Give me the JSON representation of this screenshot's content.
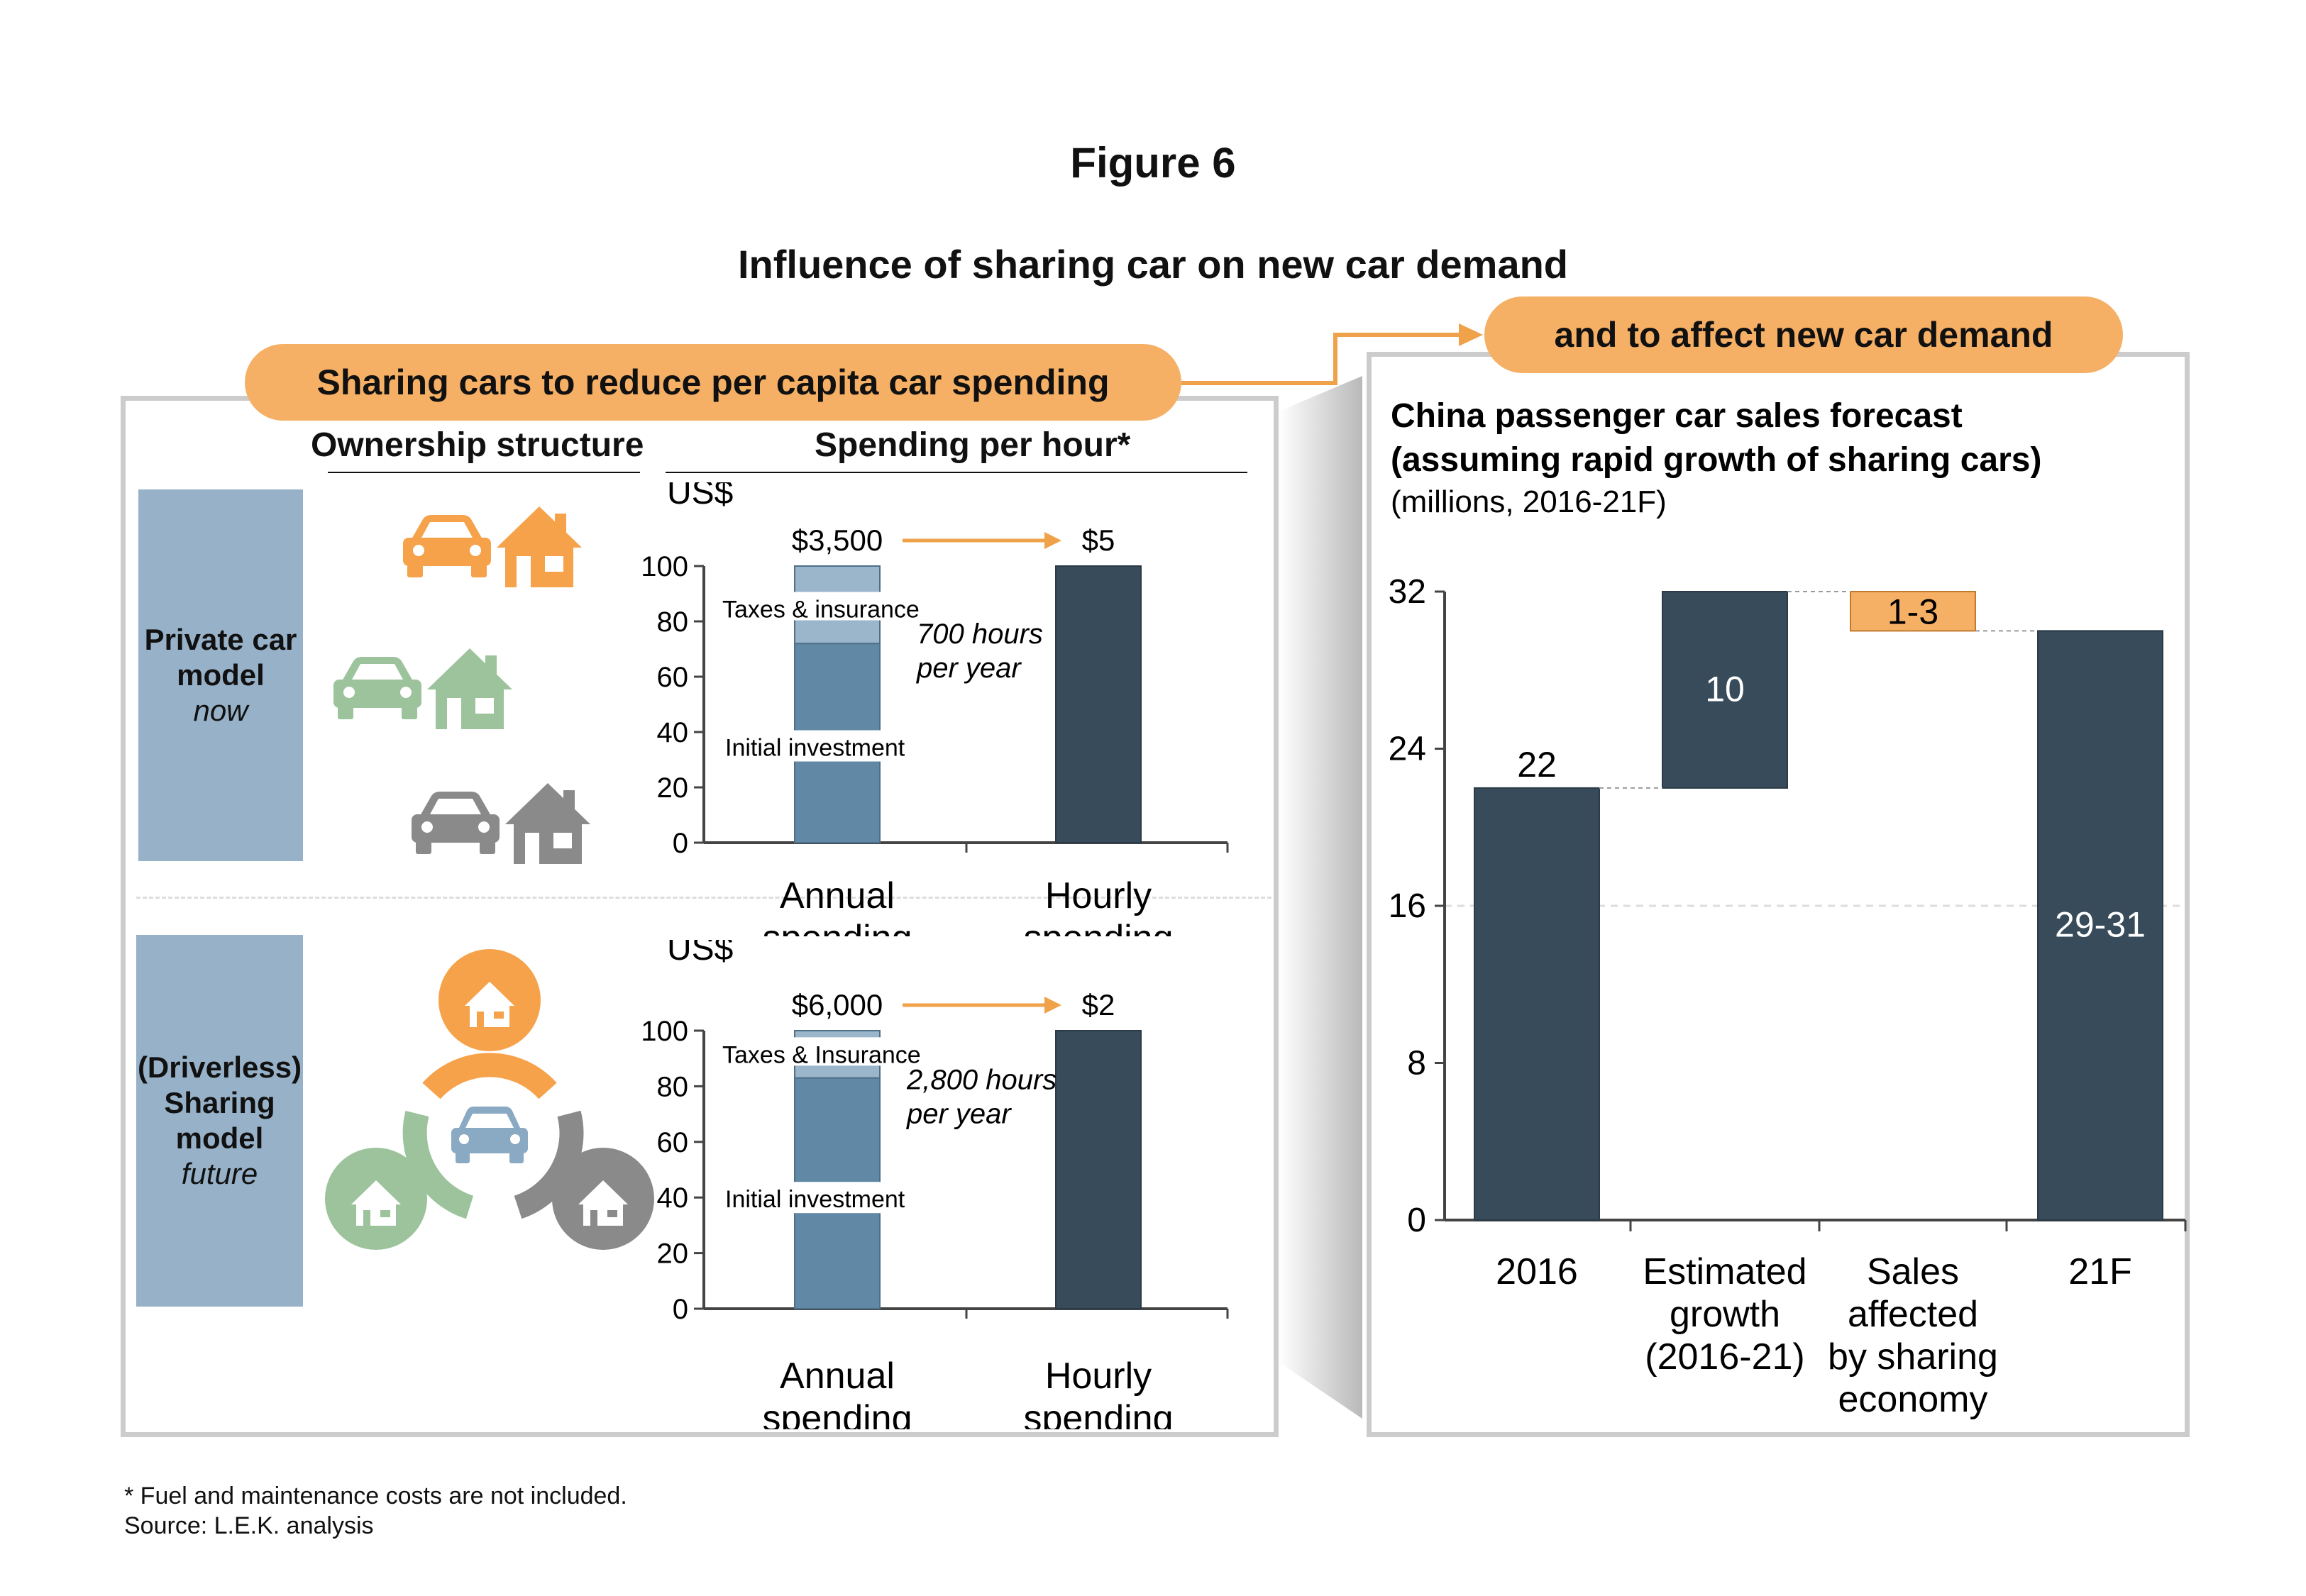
{
  "figure": {
    "label": "Figure 6",
    "title": "Influence of sharing car on new car demand"
  },
  "left": {
    "banner": "Sharing cars to reduce per capita car spending",
    "column_headers": {
      "ownership": "Ownership structure",
      "spending": "Spending per hour*"
    },
    "rows": [
      {
        "label_lines": [
          "Private car",
          "model"
        ],
        "label_sub": "now"
      },
      {
        "label_lines": [
          "(Driverless)",
          "Sharing",
          "model"
        ],
        "label_sub": "future"
      }
    ]
  },
  "right": {
    "banner": "and to affect new car demand",
    "chart_title_line1": "China passenger car sales forecast",
    "chart_title_line2": "(assuming rapid growth of sharing cars)",
    "chart_subtitle": "(millions, 2016-21F)"
  },
  "chart_data": [
    {
      "type": "bar",
      "ylabel": "US$",
      "ylim": [
        0,
        100
      ],
      "yticks": [
        0,
        20,
        40,
        60,
        80,
        100
      ],
      "categories": [
        "Annual spending",
        "Hourly spending"
      ],
      "category_lines": [
        [
          "Annual",
          "spending"
        ],
        [
          "Hourly",
          "spending"
        ]
      ],
      "series": [
        {
          "name": "Initial investment",
          "values": [
            72,
            0
          ]
        },
        {
          "name": "Taxes & insurance",
          "values": [
            28,
            0
          ]
        },
        {
          "name": "",
          "values": [
            0,
            100
          ]
        }
      ],
      "value_labels": [
        "$3,500",
        "$5"
      ],
      "annotation_lines": [
        "700 hours",
        "per year"
      ]
    },
    {
      "type": "bar",
      "ylabel": "US$",
      "ylim": [
        0,
        100
      ],
      "yticks": [
        0,
        20,
        40,
        60,
        80,
        100
      ],
      "categories": [
        "Annual spending",
        "Hourly spending"
      ],
      "category_lines": [
        [
          "Annual",
          "spending"
        ],
        [
          "Hourly",
          "spending"
        ]
      ],
      "series": [
        {
          "name": "Initial investment",
          "values": [
            83,
            0
          ]
        },
        {
          "name": "Taxes & Insurance",
          "values": [
            17,
            0
          ]
        },
        {
          "name": "",
          "values": [
            0,
            100
          ]
        }
      ],
      "value_labels": [
        "$6,000",
        "$2"
      ],
      "annotation_lines": [
        "2,800 hours",
        "per year"
      ]
    },
    {
      "type": "bar",
      "subtype": "waterfall",
      "title": "China passenger car sales forecast (assuming rapid growth of sharing cars)",
      "ylim": [
        0,
        32
      ],
      "yticks": [
        0,
        8,
        16,
        24,
        32
      ],
      "categories": [
        "2016",
        "Estimated growth (2016-21)",
        "Sales affected by sharing economy",
        "21F"
      ],
      "category_lines": [
        [
          "2016"
        ],
        [
          "Estimated",
          "growth",
          "(2016-21)"
        ],
        [
          "Sales",
          "affected",
          "by sharing",
          "economy"
        ],
        [
          "21F"
        ]
      ],
      "bars": [
        {
          "label": "22",
          "base": 0,
          "top": 22
        },
        {
          "label": "10",
          "base": 22,
          "top": 32
        },
        {
          "label": "1-3",
          "base": 30,
          "top": 32
        },
        {
          "label": "29-31",
          "base": 0,
          "top": 30
        }
      ],
      "grid": "y=16 dashed"
    }
  ],
  "colors": {
    "orange": "#f6b065",
    "orange_line": "#f0a24a",
    "navy": "#374b5a",
    "steel": "#6189a6",
    "light_steel": "#9bb5cb",
    "panel_border": "#cccccc"
  },
  "footnotes": {
    "note": "* Fuel and maintenance costs are not included.",
    "source": "Source: L.E.K. analysis"
  }
}
